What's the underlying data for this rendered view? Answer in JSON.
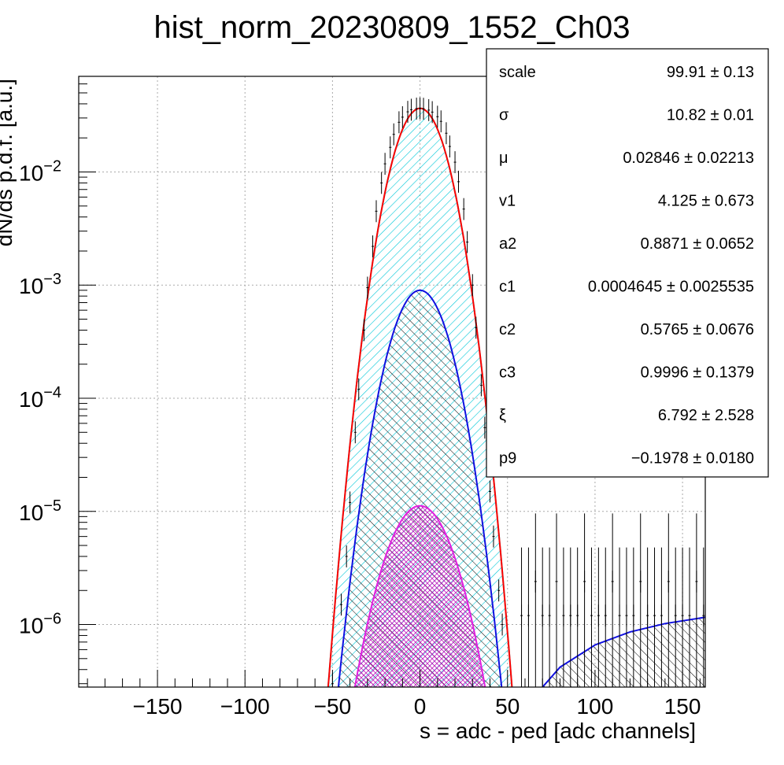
{
  "chart_data": {
    "type": "line",
    "title": "hist_norm_20230809_1552_Ch03",
    "xlabel": "s = adc - ped [adc channels]",
    "ylabel": "dN/ds p.d.f. [a.u.]",
    "xlim": [
      -195,
      163
    ],
    "ylim": [
      2.8e-07,
      0.07
    ],
    "yscale": "log",
    "grid": true,
    "x_ticks": [
      {
        "value": -150,
        "label": "−150"
      },
      {
        "value": -100,
        "label": "−100"
      },
      {
        "value": -50,
        "label": "−50"
      },
      {
        "value": 0,
        "label": "0"
      },
      {
        "value": 50,
        "label": "50"
      },
      {
        "value": 100,
        "label": "100"
      },
      {
        "value": 150,
        "label": "150"
      }
    ],
    "y_ticks": [
      {
        "value": 0.01,
        "mant": "10",
        "exp": "−2"
      },
      {
        "value": 0.001,
        "mant": "10",
        "exp": "−3"
      },
      {
        "value": 0.0001,
        "mant": "10",
        "exp": "−4"
      },
      {
        "value": 1e-05,
        "mant": "10",
        "exp": "−5"
      },
      {
        "value": 1e-06,
        "mant": "10",
        "exp": "−6"
      }
    ],
    "series": [
      {
        "color": "#00e5e5",
        "fill": "hatch-cyan",
        "curve": "gauss",
        "amplitude": 0.0365,
        "mu": 0.02846,
        "sigma": 10.82
      },
      {
        "color": "#ff0000",
        "curve": "gauss",
        "amplitude": 0.0365,
        "mu": 0.02846,
        "sigma": 10.82
      },
      {
        "color": "#1010e0",
        "fill": "hatch-black",
        "curve": "gauss",
        "amplitude": 0.0009,
        "mu": 0,
        "sigma": 11.6
      },
      {
        "color": "#e020e0",
        "fill": "hatch-magenta",
        "curve": "gauss",
        "amplitude": 1.12e-05,
        "mu": 0,
        "sigma": 13.7
      },
      {
        "color": "#1010e0",
        "fill": "hatch-black",
        "curve": "tail",
        "points": [
          [
            70,
            2.8e-07
          ],
          [
            80,
            4.2e-07
          ],
          [
            100,
            6.6e-07
          ],
          [
            120,
            8.6e-07
          ],
          [
            140,
            1.02e-06
          ],
          [
            163,
            1.16e-06
          ]
        ]
      }
    ],
    "data_points": [
      [
        -50,
        3e-07
      ],
      [
        -45,
        1.5e-06
      ],
      [
        -42,
        4e-06
      ],
      [
        -40,
        1.2e-05
      ],
      [
        -37,
        5e-05
      ],
      [
        -35,
        0.00012
      ],
      [
        -32,
        0.0004
      ],
      [
        -30,
        0.00095
      ],
      [
        -27,
        0.0022
      ],
      [
        -25,
        0.0045
      ],
      [
        -22,
        0.008
      ],
      [
        -20,
        0.0118
      ],
      [
        -17,
        0.0165
      ],
      [
        -15,
        0.0215
      ],
      [
        -12,
        0.0275
      ],
      [
        -10,
        0.0305
      ],
      [
        -7,
        0.034
      ],
      [
        -5,
        0.0355
      ],
      [
        -2,
        0.0363
      ],
      [
        0,
        0.0365
      ],
      [
        2,
        0.0362
      ],
      [
        5,
        0.0352
      ],
      [
        7,
        0.0338
      ],
      [
        10,
        0.0308
      ],
      [
        12,
        0.028
      ],
      [
        15,
        0.022
      ],
      [
        17,
        0.0168
      ],
      [
        20,
        0.0122
      ],
      [
        22,
        0.0082
      ],
      [
        25,
        0.0047
      ],
      [
        27,
        0.0024
      ],
      [
        30,
        0.001
      ],
      [
        32,
        0.00042
      ],
      [
        35,
        0.00013
      ],
      [
        37,
        5.5e-05
      ],
      [
        40,
        1.5e-05
      ],
      [
        42,
        6e-06
      ],
      [
        45,
        2e-06
      ],
      [
        47,
        1e-06
      ],
      [
        58,
        1.2e-06
      ],
      [
        62,
        1.2e-06
      ],
      [
        66,
        2.4e-06
      ],
      [
        70,
        1.2e-06
      ],
      [
        74,
        1.2e-06
      ],
      [
        78,
        2.4e-06
      ],
      [
        82,
        1.2e-06
      ],
      [
        86,
        1.2e-06
      ],
      [
        90,
        1.2e-06
      ],
      [
        94,
        2.4e-06
      ],
      [
        98,
        1.2e-06
      ],
      [
        102,
        1.2e-06
      ],
      [
        106,
        1.2e-06
      ],
      [
        110,
        2.4e-06
      ],
      [
        114,
        1.2e-06
      ],
      [
        118,
        1.2e-06
      ],
      [
        122,
        1.2e-06
      ],
      [
        126,
        2.4e-06
      ],
      [
        130,
        1.2e-06
      ],
      [
        134,
        1.2e-06
      ],
      [
        138,
        1.2e-06
      ],
      [
        142,
        2.4e-06
      ],
      [
        146,
        1.2e-06
      ],
      [
        150,
        1.2e-06
      ],
      [
        154,
        1.2e-06
      ],
      [
        158,
        2.4e-06
      ],
      [
        162,
        1.2e-06
      ]
    ],
    "stats": [
      {
        "name": "scale",
        "value": "99.91 ± 0.13"
      },
      {
        "name": "σ",
        "value": "10.82 ± 0.01"
      },
      {
        "name": "μ",
        "value": "0.02846 ± 0.02213"
      },
      {
        "name": "v1",
        "value": "4.125 ± 0.673"
      },
      {
        "name": "a2",
        "value": "0.8871 ± 0.0652"
      },
      {
        "name": "c1",
        "value": "0.0004645 ± 0.0025535"
      },
      {
        "name": "c2",
        "value": "0.5765 ± 0.0676"
      },
      {
        "name": "c3",
        "value": "0.9996 ± 0.1379"
      },
      {
        "name": "ξ",
        "value": "6.792 ± 2.528"
      },
      {
        "name": "p9",
        "value": "−0.1978 ± 0.0180"
      }
    ]
  }
}
